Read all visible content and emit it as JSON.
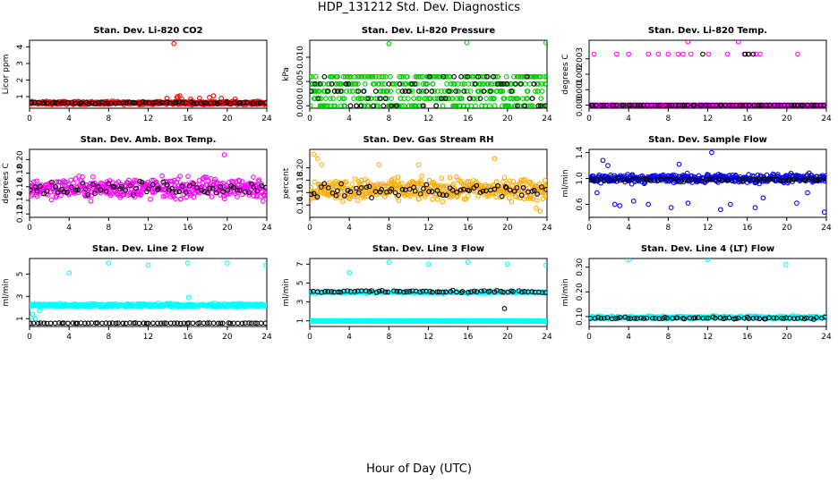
{
  "page": {
    "title": "HDP_131212  Std. Dev. Diagnostics",
    "xlabel": "Hour of Day (UTC)"
  },
  "chart_data": [
    {
      "type": "scatter",
      "title": "Stan. Dev. Li-820 CO2",
      "ylabel": "Licor ppm",
      "xlim": [
        0,
        24
      ],
      "ylim": [
        0.3,
        4.4
      ],
      "xticks": [
        "0",
        "4",
        "8",
        "12",
        "16",
        "20",
        "24"
      ],
      "yticks": [
        "1",
        "2",
        "3",
        "4"
      ],
      "series": [
        {
          "color": "#ff0000",
          "base": 0.62,
          "spread": 0.14,
          "x": [
            14.6,
            15.0,
            14.9,
            15.4,
            15.2,
            18.2,
            18.6,
            17.2,
            16.3,
            19.4,
            20.8,
            13.9
          ],
          "y": [
            4.2,
            1.0,
            0.95,
            0.85,
            1.05,
            0.95,
            1.05,
            0.9,
            0.85,
            0.9,
            0.85,
            0.9
          ]
        },
        {
          "color": "#000000",
          "base": 0.62,
          "spread": 0.08,
          "x": [],
          "y": []
        }
      ]
    },
    {
      "type": "scatter",
      "title": "Stan. Dev. Li-820 Pressure",
      "ylabel": "kPa",
      "xlim": [
        0,
        24
      ],
      "ylim": [
        -0.0005,
        0.0135
      ],
      "xticks": [
        "0",
        "4",
        "8",
        "12",
        "16",
        "20",
        "24"
      ],
      "yticks": [
        "0.000",
        "0.005",
        "0.010"
      ],
      "series": [
        {
          "color": "#00cc00",
          "levels": [
            0.0,
            0.0015,
            0.003,
            0.0045,
            0.006
          ],
          "x": [
            8.0,
            15.9,
            23.9
          ],
          "y": [
            0.0128,
            0.013,
            0.013
          ]
        },
        {
          "color": "#000000",
          "levels": [
            0.0,
            0.0015,
            0.003,
            0.0045,
            0.006
          ],
          "x": [],
          "y": []
        }
      ]
    },
    {
      "type": "scatter",
      "title": "Stan. Dev. Li-820 Temp.",
      "ylabel": "degrees C",
      "xlim": [
        0,
        24
      ],
      "ylim": [
        -0.0002,
        0.0042
      ],
      "xticks": [
        "0",
        "4",
        "8",
        "12",
        "16",
        "20",
        "24"
      ],
      "yticks": [
        "0.000",
        "0.001",
        "0.002",
        "0.003"
      ],
      "series": [
        {
          "color": "#ff00ff",
          "base": 0.0,
          "x": [
            0.5,
            2.8,
            4.0,
            6.0,
            7.0,
            8.0,
            9.0,
            9.5,
            10.3,
            12.1,
            14.0,
            15.7,
            16.2,
            16.9,
            17.3,
            21.1,
            10.0,
            15.1
          ],
          "y": [
            0.0033,
            0.0033,
            0.0033,
            0.0033,
            0.0033,
            0.0033,
            0.0033,
            0.0033,
            0.0033,
            0.0033,
            0.0033,
            0.0033,
            0.0033,
            0.0033,
            0.0033,
            0.0033,
            0.0041,
            0.0041
          ]
        },
        {
          "color": "#000000",
          "base": 0.0,
          "x": [
            11.5,
            15.8,
            16.1,
            16.6
          ],
          "y": [
            0.0033,
            0.0033,
            0.0033,
            0.0033
          ]
        }
      ]
    },
    {
      "type": "scatter",
      "title": "Stan. Dev. Amb. Box Temp.",
      "ylabel": "degrees C",
      "xlim": [
        0,
        24
      ],
      "ylim": [
        0.115,
        0.215
      ],
      "xticks": [
        "0",
        "4",
        "8",
        "12",
        "16",
        "20",
        "24"
      ],
      "yticks": [
        "0.12",
        "0.14",
        "0.16",
        "0.18",
        "0.20"
      ],
      "series": [
        {
          "color": "#ff00ff",
          "base": 0.158,
          "spread": 0.022,
          "x": [
            19.7
          ],
          "y": [
            0.207
          ]
        },
        {
          "color": "#000000",
          "base": 0.158,
          "spread": 0.014,
          "x": [],
          "y": []
        }
      ]
    },
    {
      "type": "scatter",
      "title": "Stan. Dev. Gas Stream RH",
      "ylabel": "percent",
      "xlim": [
        0,
        24
      ],
      "ylim": [
        0.12,
        0.23
      ],
      "xticks": [
        "0",
        "4",
        "8",
        "12",
        "16",
        "20",
        "24"
      ],
      "yticks": [
        "0.14",
        "0.16",
        "0.18",
        "0.20"
      ],
      "series": [
        {
          "color": "#ffaa00",
          "base": 0.165,
          "spread": 0.025,
          "x": [
            0.4,
            0.8,
            1.2,
            7.0,
            11.0,
            18.7,
            22.9,
            23.3
          ],
          "y": [
            0.222,
            0.215,
            0.205,
            0.205,
            0.205,
            0.215,
            0.135,
            0.13
          ]
        },
        {
          "color": "#000000",
          "base": 0.163,
          "spread": 0.016,
          "x": [],
          "y": []
        }
      ]
    },
    {
      "type": "scatter",
      "title": "Stan. Dev. Sample Flow",
      "ylabel": "ml/min",
      "xlim": [
        0,
        24
      ],
      "ylim": [
        0.4,
        1.45
      ],
      "xticks": [
        "0",
        "4",
        "8",
        "12",
        "16",
        "20",
        "24"
      ],
      "yticks": [
        "0.6",
        "1.0",
        "1.4"
      ],
      "series": [
        {
          "color": "#0000ff",
          "base": 1.0,
          "spread": 0.1,
          "x": [
            1.4,
            1.9,
            2.6,
            3.1,
            6.0,
            8.3,
            10.0,
            12.4,
            13.3,
            14.3,
            16.8,
            23.8,
            4.5,
            21.0,
            0.8,
            17.6,
            22.1,
            9.1
          ],
          "y": [
            1.28,
            1.2,
            0.6,
            0.58,
            0.6,
            0.55,
            0.62,
            1.4,
            0.52,
            0.6,
            0.55,
            0.48,
            0.65,
            0.62,
            0.78,
            0.7,
            0.78,
            1.22
          ]
        },
        {
          "color": "#000000",
          "base": 0.98,
          "spread": 0.03,
          "x": [],
          "y": []
        }
      ]
    },
    {
      "type": "scatter",
      "title": "Stan. Dev. Line 2 Flow",
      "ylabel": "ml/min",
      "xlim": [
        0,
        24
      ],
      "ylim": [
        0.3,
        6.4
      ],
      "xticks": [
        "0",
        "4",
        "8",
        "12",
        "16",
        "20",
        "24"
      ],
      "yticks": [
        "1",
        "3",
        "5"
      ],
      "series": [
        {
          "color": "#00ffff",
          "base": 2.2,
          "spread": 0.22,
          "x": [
            4.0,
            8.0,
            12.0,
            16.0,
            20.0,
            23.9,
            0.1,
            0.3,
            0.6,
            1.0,
            16.1
          ],
          "y": [
            5.1,
            6.0,
            5.8,
            6.0,
            6.0,
            5.8,
            1.1,
            1.4,
            1.0,
            1.7,
            2.9
          ]
        },
        {
          "color": "#000000",
          "base": 0.6,
          "spread": 0.03,
          "x": [],
          "y": []
        }
      ]
    },
    {
      "type": "scatter",
      "title": "Stan. Dev. Line 3 Flow",
      "ylabel": "ml/min",
      "xlim": [
        0,
        24
      ],
      "ylim": [
        0.4,
        7.6
      ],
      "xticks": [
        "0",
        "4",
        "8",
        "12",
        "16",
        "20",
        "24"
      ],
      "yticks": [
        "1",
        "3",
        "5",
        "7"
      ],
      "series": [
        {
          "color": "#00ffff",
          "levels": [
            1.0,
            4.0
          ],
          "x": [
            4.0,
            8.0,
            12.0,
            16.0,
            20.0,
            23.9
          ],
          "y": [
            6.1,
            7.2,
            7.0,
            7.2,
            7.0,
            6.9
          ]
        },
        {
          "color": "#000000",
          "base": 4.1,
          "spread": 0.2,
          "x": [
            19.7
          ],
          "y": [
            2.3
          ]
        }
      ]
    },
    {
      "type": "scatter",
      "title": "Stan. Dev. Line 4 (LT) Flow",
      "ylabel": "ml/min",
      "xlim": [
        0,
        24
      ],
      "ylim": [
        0.06,
        0.335
      ],
      "xticks": [
        "0",
        "4",
        "8",
        "12",
        "16",
        "20",
        "24"
      ],
      "yticks": [
        "0.10",
        "0.20",
        "0.30"
      ],
      "series": [
        {
          "color": "#00ffff",
          "base": 0.097,
          "spread": 0.008,
          "x": [
            4.0,
            12.0,
            19.9
          ],
          "y": [
            0.33,
            0.33,
            0.31
          ]
        },
        {
          "color": "#000000",
          "base": 0.094,
          "spread": 0.006,
          "x": [],
          "y": []
        }
      ]
    }
  ]
}
